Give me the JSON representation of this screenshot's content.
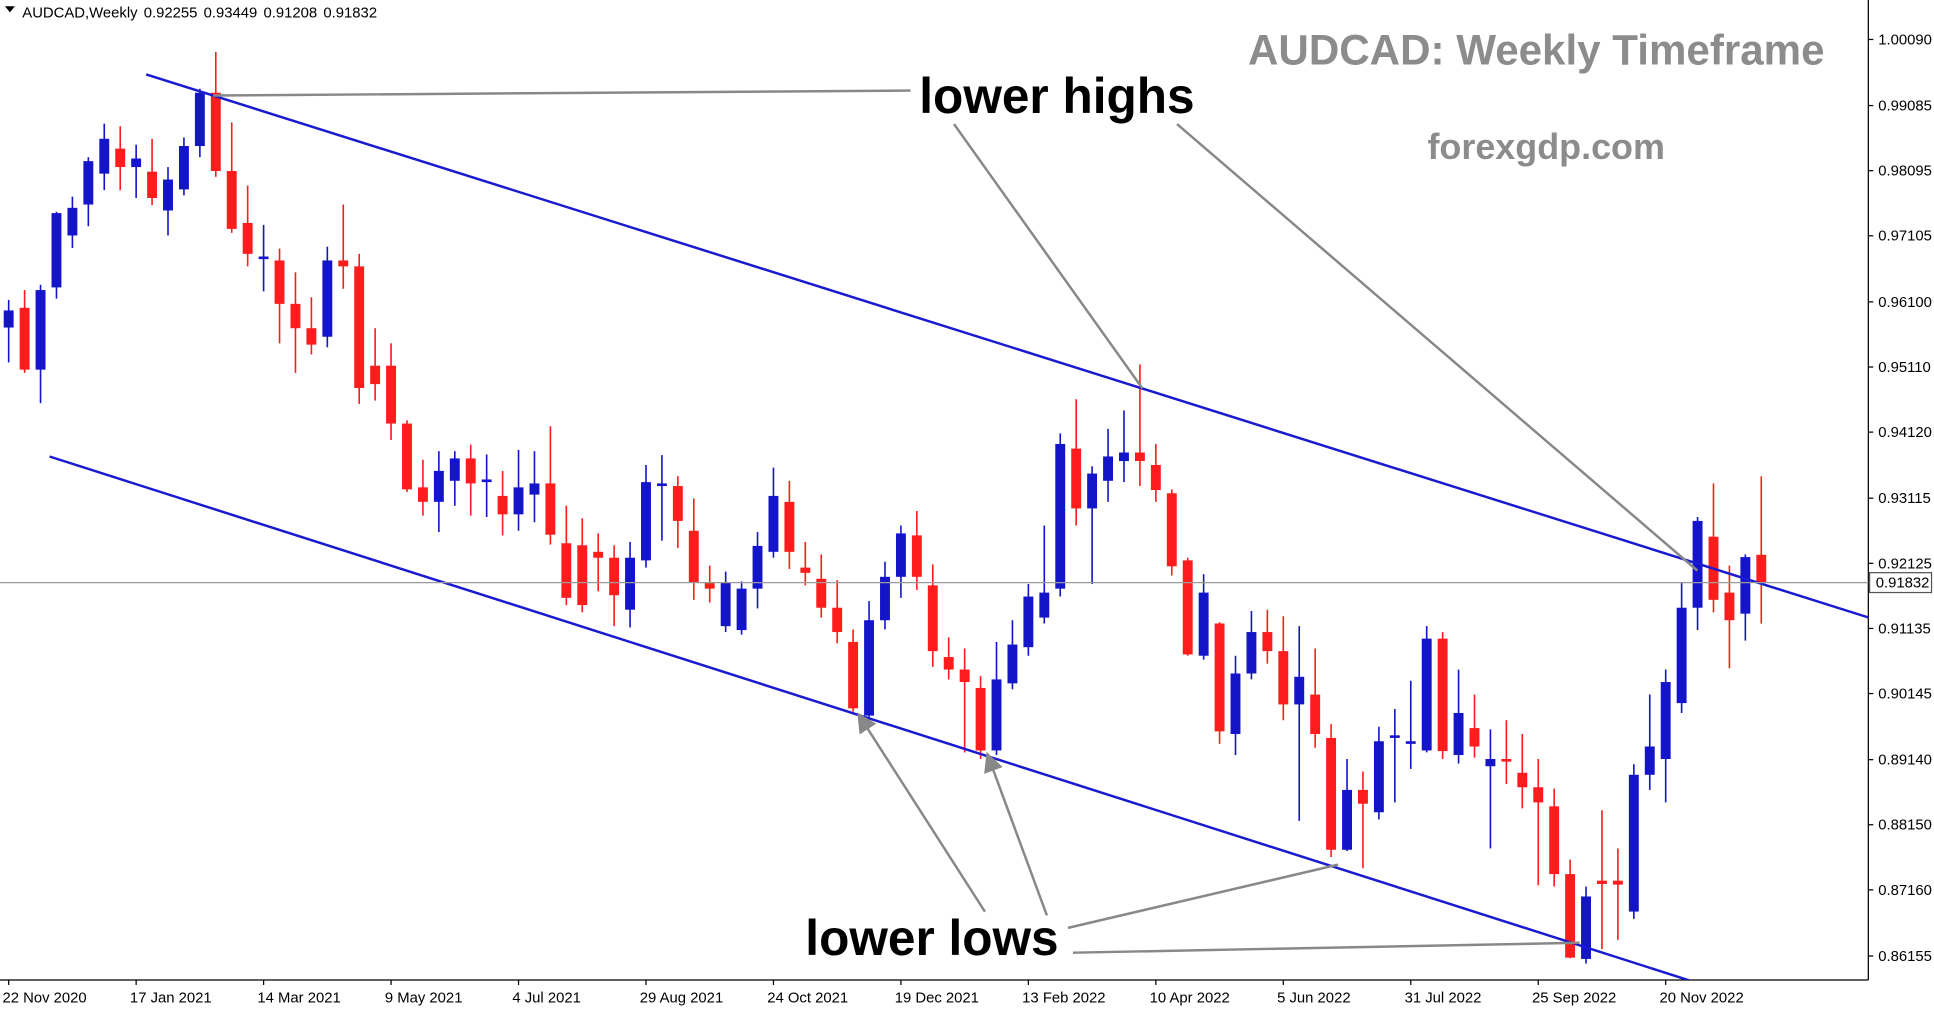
{
  "chart_data": {
    "type": "candlestick",
    "symbol": "AUDCAD,Weekly",
    "title": "AUDCAD: Weekly Timeframe",
    "subtitle": "forexgdp.com",
    "annotations": [
      "lower highs",
      "lower lows"
    ],
    "up_color": "#1414c8",
    "down_color": "#ff1c1c",
    "categories": [
      "22 Nov 2020",
      null,
      null,
      null,
      null,
      null,
      null,
      null,
      "17 Jan 2021",
      null,
      null,
      null,
      null,
      null,
      null,
      null,
      "14 Mar 2021",
      null,
      null,
      null,
      null,
      null,
      null,
      null,
      "9 May 2021",
      null,
      null,
      null,
      null,
      null,
      null,
      null,
      "4 Jul 2021",
      null,
      null,
      null,
      null,
      null,
      null,
      null,
      "29 Aug 2021",
      null,
      null,
      null,
      null,
      null,
      null,
      null,
      "24 Oct 2021",
      null,
      null,
      null,
      null,
      null,
      null,
      null,
      "19 Dec 2021",
      null,
      null,
      null,
      null,
      null,
      null,
      null,
      "13 Feb 2022",
      null,
      null,
      null,
      null,
      null,
      null,
      null,
      "10 Apr 2022",
      null,
      null,
      null,
      null,
      null,
      null,
      null,
      "5 Jun 2022",
      null,
      null,
      null,
      null,
      null,
      null,
      null,
      "31 Jul 2022",
      null,
      null,
      null,
      null,
      null,
      null,
      null,
      "25 Sep 2022",
      null,
      null,
      null,
      null,
      null,
      null,
      null,
      "20 Nov 2022",
      null,
      null,
      null,
      null,
      null,
      null
    ],
    "open": [
      0.9571,
      0.9601,
      0.9507,
      0.9632,
      0.9711,
      0.9758,
      0.9805,
      0.9843,
      0.9815,
      0.9808,
      0.9749,
      0.9781,
      0.9847,
      0.9928,
      0.9809,
      0.973,
      0.9675,
      0.9673,
      0.9607,
      0.957,
      0.9557,
      0.9673,
      0.9664,
      0.9513,
      0.9513,
      0.9425,
      0.9328,
      0.9306,
      0.9338,
      0.9372,
      0.9336,
      0.9315,
      0.9287,
      0.9317,
      0.9334,
      0.9243,
      0.924,
      0.923,
      0.9221,
      0.9142,
      0.9217,
      0.933,
      0.933,
      0.9262,
      0.9183,
      0.9117,
      0.9111,
      0.9174,
      0.923,
      0.9306,
      0.9206,
      0.9189,
      0.9145,
      0.9093,
      0.8981,
      0.9126,
      0.9192,
      0.9255,
      0.9179,
      0.907,
      0.9051,
      0.9023,
      0.8928,
      0.903,
      0.9085,
      0.913,
      0.9174,
      0.9387,
      0.9296,
      0.9338,
      0.9368,
      0.9381,
      0.9362,
      0.9319,
      0.9217,
      0.9072,
      0.9121,
      0.8953,
      0.9045,
      0.9108,
      0.9079,
      0.8998,
      0.9013,
      0.8947,
      0.8777,
      0.8868,
      0.8834,
      0.8947,
      0.8938,
      0.8928,
      0.9098,
      0.8921,
      0.8962,
      0.8904,
      0.8915,
      0.8894,
      0.8872,
      0.8843,
      0.874,
      0.8611,
      0.873,
      0.873,
      0.8683,
      0.8891,
      0.8915,
      0.9,
      0.9145,
      0.9253,
      0.9168,
      0.9136,
      0.92255
    ],
    "high": [
      0.9613,
      0.9628,
      0.9636,
      0.9747,
      0.977,
      0.983,
      0.9881,
      0.9877,
      0.9849,
      0.9858,
      0.9815,
      0.986,
      0.9934,
      0.999,
      0.9883,
      0.9787,
      0.9727,
      0.9691,
      0.9655,
      0.9617,
      0.9694,
      0.9758,
      0.9683,
      0.957,
      0.9547,
      0.943,
      0.937,
      0.9383,
      0.9383,
      0.9393,
      0.9378,
      0.9353,
      0.9385,
      0.9383,
      0.9421,
      0.93,
      0.9281,
      0.9258,
      0.924,
      0.9245,
      0.9362,
      0.9377,
      0.9345,
      0.9311,
      0.9209,
      0.92,
      0.9185,
      0.926,
      0.9358,
      0.9338,
      0.9245,
      0.9226,
      0.9187,
      0.9112,
      0.9155,
      0.9215,
      0.927,
      0.9292,
      0.9211,
      0.91,
      0.9083,
      0.9041,
      0.9093,
      0.9126,
      0.9181,
      0.927,
      0.941,
      0.9462,
      0.936,
      0.9417,
      0.9445,
      0.9515,
      0.9394,
      0.9325,
      0.9221,
      0.9196,
      0.9123,
      0.9072,
      0.914,
      0.9142,
      0.9132,
      0.9117,
      0.9083,
      0.8968,
      0.8915,
      0.8896,
      0.8964,
      0.8991,
      0.9034,
      0.9117,
      0.9108,
      0.9051,
      0.9013,
      0.896,
      0.8974,
      0.8953,
      0.8915,
      0.887,
      0.8762,
      0.8721,
      0.8837,
      0.8779,
      0.8907,
      0.9013,
      0.9051,
      0.9183,
      0.9283,
      0.9334,
      0.9209,
      0.9226,
      0.93449
    ],
    "low": [
      0.9518,
      0.9502,
      0.9456,
      0.9615,
      0.9692,
      0.9725,
      0.978,
      0.978,
      0.9768,
      0.9757,
      0.9711,
      0.9772,
      0.983,
      0.98,
      0.9715,
      0.9664,
      0.9626,
      0.9547,
      0.9502,
      0.953,
      0.9541,
      0.963,
      0.9455,
      0.946,
      0.94,
      0.9321,
      0.9285,
      0.926,
      0.93,
      0.9285,
      0.9283,
      0.9255,
      0.9262,
      0.9275,
      0.9241,
      0.9149,
      0.9138,
      0.917,
      0.9117,
      0.9115,
      0.9206,
      0.9247,
      0.9236,
      0.9157,
      0.9153,
      0.9108,
      0.9104,
      0.9144,
      0.9221,
      0.9204,
      0.9179,
      0.913,
      0.9091,
      0.8987,
      0.8977,
      0.9112,
      0.916,
      0.9172,
      0.9055,
      0.9036,
      0.8925,
      0.8915,
      0.8921,
      0.9021,
      0.9072,
      0.9121,
      0.9162,
      0.927,
      0.9181,
      0.9306,
      0.9336,
      0.933,
      0.9306,
      0.9194,
      0.9072,
      0.9066,
      0.8938,
      0.8921,
      0.9036,
      0.906,
      0.8974,
      0.8821,
      0.8932,
      0.8766,
      0.8775,
      0.8749,
      0.8823,
      0.8849,
      0.89,
      0.8925,
      0.8915,
      0.8908,
      0.8917,
      0.8779,
      0.8877,
      0.884,
      0.8723,
      0.8721,
      0.8612,
      0.8604,
      0.8626,
      0.864,
      0.8672,
      0.8868,
      0.8849,
      0.8985,
      0.9111,
      0.9138,
      0.9053,
      0.9095,
      0.91208
    ],
    "close": [
      0.9597,
      0.9507,
      0.9628,
      0.9745,
      0.9753,
      0.9824,
      0.9858,
      0.9815,
      0.9828,
      0.9768,
      0.9796,
      0.9847,
      0.9928,
      0.9809,
      0.9721,
      0.9683,
      0.9679,
      0.9607,
      0.957,
      0.9545,
      0.9673,
      0.9664,
      0.9479,
      0.9485,
      0.9425,
      0.9325,
      0.9306,
      0.9353,
      0.9372,
      0.9334,
      0.934,
      0.9287,
      0.9328,
      0.9334,
      0.9256,
      0.916,
      0.9149,
      0.9221,
      0.9164,
      0.9221,
      0.9336,
      0.9334,
      0.9277,
      0.9183,
      0.9174,
      0.9183,
      0.9174,
      0.9239,
      0.9315,
      0.923,
      0.9198,
      0.9145,
      0.9108,
      0.8992,
      0.9126,
      0.9192,
      0.9258,
      0.9192,
      0.9079,
      0.9051,
      0.9032,
      0.8928,
      0.9036,
      0.9089,
      0.9162,
      0.9168,
      0.9394,
      0.9296,
      0.9349,
      0.9375,
      0.9381,
      0.9368,
      0.9324,
      0.9208,
      0.9074,
      0.9168,
      0.8957,
      0.9045,
      0.9108,
      0.9079,
      0.8998,
      0.904,
      0.8953,
      0.8777,
      0.8868,
      0.8847,
      0.8942,
      0.8951,
      0.8942,
      0.9098,
      0.8927,
      0.8985,
      0.8934,
      0.8915,
      0.8911,
      0.8872,
      0.8849,
      0.874,
      0.8613,
      0.8706,
      0.8725,
      0.8724,
      0.8891,
      0.8934,
      0.9032,
      0.9145,
      0.9277,
      0.9157,
      0.9126,
      0.9222,
      0.91832
    ],
    "ylim": [
      0.8579,
      1.0069
    ],
    "yticks": [
      {
        "value": 1.0009,
        "label": "1.00090"
      },
      {
        "value": 0.99085,
        "label": "0.99085"
      },
      {
        "value": 0.98095,
        "label": "0.98095"
      },
      {
        "value": 0.97105,
        "label": "0.97105"
      },
      {
        "value": 0.961,
        "label": "0.96100"
      },
      {
        "value": 0.9511,
        "label": "0.95110"
      },
      {
        "value": 0.9412,
        "label": "0.94120"
      },
      {
        "value": 0.93115,
        "label": "0.93115"
      },
      {
        "value": 0.92125,
        "label": "0.92125"
      },
      {
        "value": 0.91135,
        "label": "0.91135"
      },
      {
        "value": 0.90145,
        "label": "0.90145"
      },
      {
        "value": 0.8914,
        "label": "0.89140"
      },
      {
        "value": 0.8815,
        "label": "0.88150"
      },
      {
        "value": 0.8716,
        "label": "0.87160"
      },
      {
        "value": 0.86155,
        "label": "0.86155"
      }
    ]
  }
}
